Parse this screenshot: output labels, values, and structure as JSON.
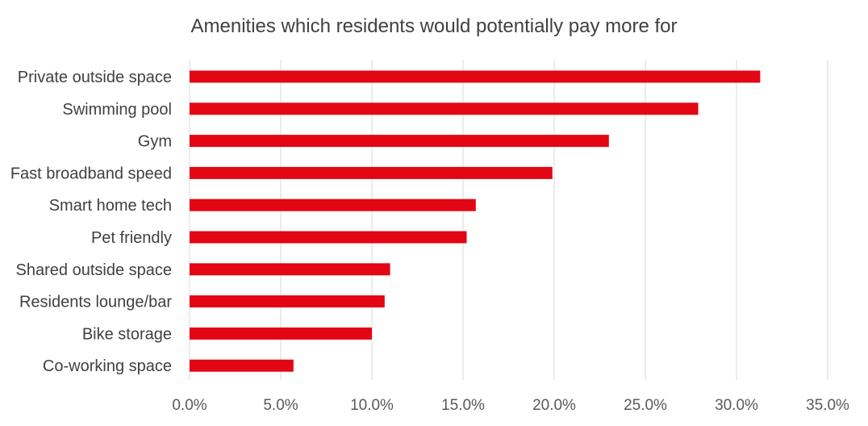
{
  "chart_data": {
    "type": "bar",
    "orientation": "horizontal",
    "title": "Amenities which residents would potentially pay more for",
    "xlabel": "",
    "ylabel": "",
    "categories": [
      "Private outside space",
      "Swimming pool",
      "Gym",
      "Fast broadband speed",
      "Smart home tech",
      "Pet friendly",
      "Shared outside space",
      "Residents lounge/bar",
      "Bike storage",
      "Co-working space"
    ],
    "values": [
      31.3,
      27.9,
      23.0,
      19.9,
      15.7,
      15.2,
      11.0,
      10.7,
      10.0,
      5.7
    ],
    "xlim": [
      0,
      35
    ],
    "x_ticks": [
      "0.0%",
      "5.0%",
      "10.0%",
      "15.0%",
      "20.0%",
      "25.0%",
      "30.0%",
      "35.0%"
    ],
    "tick_step": 5,
    "grid": true,
    "legend": "none",
    "bar_color": "#e30613",
    "grid_color": "#d9d9d9"
  }
}
